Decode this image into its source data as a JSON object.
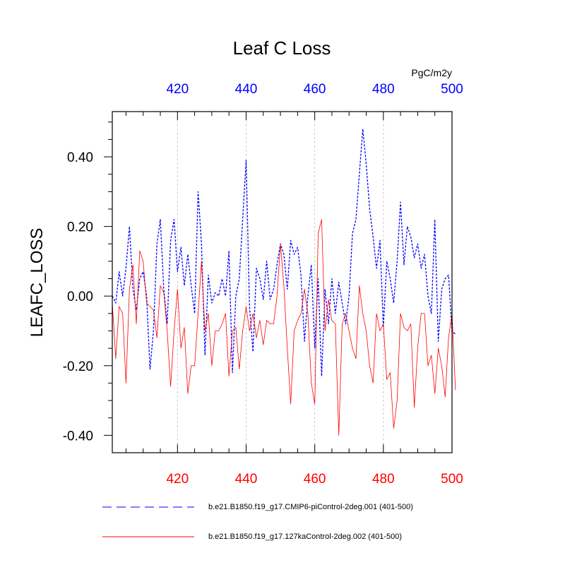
{
  "chart_data": {
    "type": "line",
    "title": "Leaf C Loss",
    "ylabel": "LEAFC_LOSS",
    "units": "PgC/m2y",
    "xlim": [
      401,
      500
    ],
    "ylim": [
      -0.45,
      0.53
    ],
    "yticks": [
      -0.4,
      -0.2,
      0.0,
      0.2,
      0.4
    ],
    "ytick_labels": [
      "-0.40",
      "-0.20",
      "0.00",
      "0.20",
      "0.40"
    ],
    "xticks": [
      420,
      440,
      460,
      480,
      500
    ],
    "xtick_labels": [
      "420",
      "440",
      "460",
      "480",
      "500"
    ],
    "top_tick_color": "#0000ff",
    "bottom_tick_color": "#ff0000",
    "x_start": 401,
    "series": [
      {
        "name": "b.e21.B1850.f19_g17.CMIP6-piControl-2deg.001 (401-500)",
        "color": "#0000ff",
        "style": "dashed",
        "values": [
          0.0,
          -0.02,
          0.07,
          0.0,
          0.08,
          0.2,
          0.02,
          -0.04,
          0.05,
          0.07,
          0.0,
          -0.21,
          -0.1,
          0.15,
          0.22,
          0.02,
          -0.08,
          0.16,
          0.22,
          0.07,
          0.14,
          0.03,
          0.12,
          0.03,
          -0.05,
          0.3,
          0.15,
          -0.17,
          0.06,
          -0.02,
          0.01,
          0.0,
          0.05,
          0.0,
          0.13,
          -0.22,
          0.0,
          0.05,
          0.22,
          0.39,
          -0.03,
          -0.16,
          0.08,
          0.05,
          -0.01,
          0.1,
          -0.01,
          0.02,
          0.09,
          0.15,
          0.12,
          0.02,
          0.16,
          0.12,
          0.14,
          0.06,
          -0.13,
          0.0,
          0.09,
          -0.15,
          0.05,
          -0.23,
          0.02,
          -0.08,
          0.05,
          -0.05,
          0.04,
          -0.02,
          -0.08,
          0.0,
          0.18,
          0.22,
          0.35,
          0.48,
          0.38,
          0.25,
          0.17,
          0.08,
          0.16,
          -0.09,
          0.1,
          0.05,
          -0.02,
          0.1,
          0.27,
          0.09,
          0.2,
          0.17,
          0.11,
          0.15,
          0.08,
          0.12,
          0.0,
          -0.05,
          0.22,
          -0.13,
          0.02,
          0.05,
          0.06,
          -0.1,
          -0.11
        ]
      },
      {
        "name": "b.e21.B1850.f19_g17.127kaControl-2deg.002 (401-500)",
        "color": "#ff0000",
        "style": "solid",
        "values": [
          -0.02,
          -0.18,
          -0.03,
          -0.05,
          -0.25,
          0.02,
          0.09,
          -0.08,
          0.13,
          0.1,
          -0.02,
          -0.03,
          -0.04,
          -0.12,
          0.03,
          0.01,
          -0.1,
          -0.26,
          -0.1,
          0.02,
          -0.15,
          -0.09,
          -0.28,
          -0.2,
          -0.2,
          -0.05,
          0.1,
          -0.1,
          -0.05,
          -0.2,
          -0.1,
          -0.1,
          -0.08,
          -0.05,
          -0.23,
          -0.1,
          -0.09,
          -0.21,
          -0.1,
          -0.03,
          -0.1,
          -0.05,
          -0.12,
          -0.07,
          -0.14,
          -0.07,
          -0.08,
          -0.08,
          0.0,
          0.15,
          0.03,
          -0.15,
          -0.31,
          -0.1,
          -0.07,
          -0.05,
          0.02,
          -0.05,
          -0.25,
          -0.31,
          0.18,
          0.22,
          -0.1,
          -0.01,
          -0.07,
          -0.08,
          -0.4,
          -0.08,
          -0.05,
          -0.1,
          -0.15,
          -0.18,
          0.03,
          -0.05,
          -0.1,
          -0.2,
          -0.25,
          -0.05,
          -0.1,
          -0.08,
          -0.24,
          -0.22,
          -0.38,
          -0.3,
          -0.05,
          -0.09,
          -0.1,
          -0.08,
          -0.32,
          -0.15,
          -0.05,
          -0.05,
          -0.2,
          -0.17,
          -0.28,
          -0.15,
          -0.2,
          -0.29,
          -0.12,
          -0.05,
          -0.27
        ]
      }
    ]
  }
}
